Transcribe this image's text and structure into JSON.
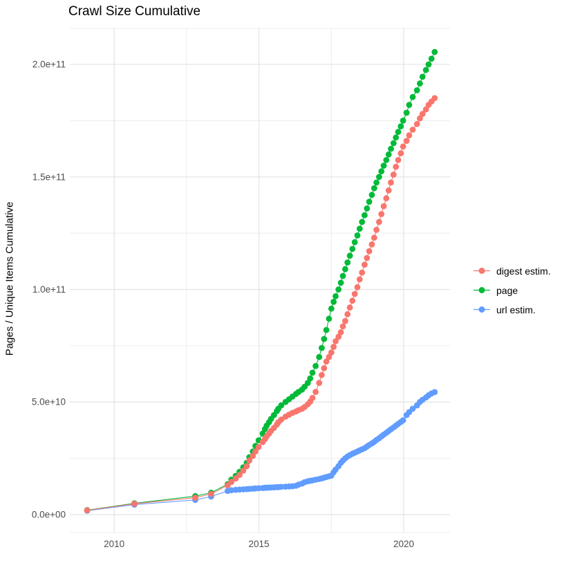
{
  "figure": {
    "title": "Crawl Size Cumulative"
  },
  "chart_data": {
    "type": "line",
    "marker": "point",
    "title": "Crawl Size Cumulative",
    "xlabel": "",
    "ylabel": "Pages / Unique Items Cumulative",
    "value_unit": "pages, billions (1e9)",
    "grid": {
      "enabled": true,
      "major_color": "#E3E3E3",
      "minor_color": "#EDEDED"
    },
    "background_color": "#FFFFFF",
    "tick_label_color": "#4D4D4D",
    "legend_position": "right-center",
    "xlim": [
      2008.47,
      2021.6
    ],
    "ylim_e9": [
      -8,
      216
    ],
    "x_major_ticks": [
      {
        "value": 2010,
        "label": "2010"
      },
      {
        "value": 2015,
        "label": "2015"
      },
      {
        "value": 2020,
        "label": "2020"
      }
    ],
    "x_minor_ticks": [
      2012.5,
      2017.5
    ],
    "y_major_ticks": [
      {
        "value_e9": 0,
        "label": "0.0e+00"
      },
      {
        "value_e9": 50,
        "label": "5.0e+10"
      },
      {
        "value_e9": 100,
        "label": "1.0e+11"
      },
      {
        "value_e9": 150,
        "label": "1.5e+11"
      },
      {
        "value_e9": 200,
        "label": "2.0e+11"
      }
    ],
    "y_minor_ticks_e9": [
      25,
      75,
      125,
      175
    ],
    "x_years": [
      2009.07,
      2010.7,
      2012.8,
      2013.35,
      2013.92,
      2014.05,
      2014.2,
      2014.33,
      2014.46,
      2014.58,
      2014.67,
      2014.79,
      2014.88,
      2014.99,
      2015.13,
      2015.21,
      2015.27,
      2015.35,
      2015.42,
      2015.52,
      2015.62,
      2015.67,
      2015.77,
      2015.92,
      2016.04,
      2016.16,
      2016.28,
      2016.37,
      2016.49,
      2016.58,
      2016.69,
      2016.77,
      2016.85,
      2016.96,
      2017.08,
      2017.17,
      2017.25,
      2017.33,
      2017.42,
      2017.5,
      2017.58,
      2017.65,
      2017.75,
      2017.83,
      2017.9,
      2017.98,
      2018.06,
      2018.14,
      2018.23,
      2018.31,
      2018.4,
      2018.48,
      2018.56,
      2018.65,
      2018.73,
      2018.81,
      2018.9,
      2018.98,
      2019.06,
      2019.15,
      2019.23,
      2019.31,
      2019.4,
      2019.48,
      2019.56,
      2019.65,
      2019.73,
      2019.81,
      2019.9,
      2019.98,
      2020.1,
      2020.19,
      2020.31,
      2020.46,
      2020.56,
      2020.65,
      2020.77,
      2020.86,
      2020.96,
      2021.07
    ],
    "series": [
      {
        "name": "digest estim.",
        "color": "#F8766D",
        "values_e9": [
          1.9,
          4.8,
          7.5,
          9.2,
          13.0,
          14.5,
          16.0,
          17.6,
          19.5,
          21.5,
          24.0,
          26.0,
          28.0,
          30.0,
          32.2,
          33.5,
          34.7,
          36.0,
          37.2,
          38.5,
          40.0,
          41.0,
          42.2,
          43.5,
          44.4,
          45.2,
          45.8,
          46.4,
          47.0,
          47.8,
          49.0,
          50.2,
          51.8,
          54.5,
          58.5,
          62.0,
          65.0,
          68.0,
          70.0,
          72.0,
          74.5,
          77.0,
          79.0,
          81.0,
          83.6,
          86.0,
          89.0,
          92.0,
          95.0,
          98.0,
          101.0,
          104.5,
          107.5,
          111.0,
          114.0,
          117.0,
          120.0,
          123.0,
          126.5,
          130.0,
          133.5,
          137.0,
          140.5,
          144.0,
          147.5,
          151.0,
          154.5,
          157.5,
          160.5,
          163.5,
          166.0,
          168.5,
          171.0,
          173.5,
          176.0,
          178.0,
          180.0,
          182.0,
          183.5,
          185.0
        ]
      },
      {
        "name": "page",
        "color": "#00BA38",
        "values_e9": [
          2.0,
          5.0,
          8.2,
          9.7,
          13.5,
          15.5,
          17.2,
          19.0,
          21.0,
          23.0,
          25.5,
          28.0,
          30.5,
          33.0,
          36.0,
          38.0,
          39.5,
          41.0,
          42.5,
          44.2,
          46.0,
          47.0,
          48.5,
          50.0,
          51.2,
          52.4,
          53.6,
          54.5,
          55.5,
          56.8,
          58.5,
          60.5,
          63.0,
          66.0,
          70.0,
          74.0,
          78.0,
          82.0,
          87.0,
          91.5,
          94.5,
          97.0,
          100.0,
          103.0,
          106.0,
          109.0,
          112.0,
          115.0,
          118.0,
          121.0,
          124.0,
          127.0,
          130.0,
          133.0,
          136.0,
          139.0,
          142.0,
          145.0,
          147.5,
          150.0,
          152.5,
          155.0,
          157.5,
          160.0,
          162.5,
          165.0,
          167.5,
          170.0,
          172.5,
          175.0,
          178.5,
          182.0,
          185.5,
          188.5,
          191.5,
          194.5,
          197.5,
          200.0,
          202.5,
          205.5
        ]
      },
      {
        "name": "url estim.",
        "color": "#619CFF",
        "values_e9": [
          1.7,
          4.4,
          6.5,
          8.0,
          10.5,
          10.8,
          11.0,
          11.1,
          11.2,
          11.3,
          11.4,
          11.5,
          11.6,
          11.7,
          11.8,
          11.9,
          11.9,
          12.0,
          12.0,
          12.1,
          12.2,
          12.2,
          12.3,
          12.4,
          12.5,
          12.6,
          12.8,
          13.3,
          13.8,
          14.4,
          14.8,
          15.0,
          15.2,
          15.5,
          15.8,
          16.1,
          16.4,
          16.7,
          17.0,
          17.3,
          18.8,
          20.0,
          21.5,
          23.0,
          24.0,
          25.0,
          25.8,
          26.4,
          27.0,
          27.5,
          28.0,
          28.5,
          29.0,
          29.5,
          30.2,
          30.9,
          31.6,
          32.3,
          33.1,
          33.9,
          34.7,
          35.5,
          36.3,
          37.1,
          37.9,
          38.7,
          39.5,
          40.3,
          41.1,
          41.9,
          44.2,
          45.5,
          47.0,
          48.5,
          50.0,
          51.0,
          52.0,
          53.0,
          53.8,
          54.4
        ]
      }
    ]
  }
}
